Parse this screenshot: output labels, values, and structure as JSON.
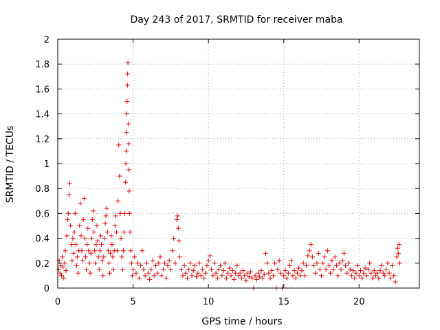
{
  "chart_data": {
    "type": "scatter",
    "title": "Day 243 of 2017, SRMTID for receiver maba",
    "xlabel": "GPS time / hours",
    "ylabel": "SRMTID / TECUs",
    "xlim": [
      0,
      24
    ],
    "ylim": [
      0,
      2
    ],
    "xticks": [
      0,
      5,
      10,
      15,
      20
    ],
    "yticks": [
      0,
      0.2,
      0.4,
      0.6,
      0.8,
      1,
      1.2,
      1.4,
      1.6,
      1.8,
      2
    ],
    "ytick_labels": [
      "0",
      "0.2",
      "0.4",
      "0.6",
      "0.8",
      "1",
      "1.2",
      "1.4",
      "1.6",
      "1.8",
      "2"
    ],
    "grid": true,
    "marker": "+",
    "color": "#e00000",
    "series": [
      {
        "name": "SRMTID",
        "points": [
          [
            0.05,
            0.15
          ],
          [
            0.1,
            0.22
          ],
          [
            0.15,
            0.12
          ],
          [
            0.2,
            0.18
          ],
          [
            0.25,
            0.1
          ],
          [
            0.3,
            0.25
          ],
          [
            0.35,
            0.17
          ],
          [
            0.4,
            0.08
          ],
          [
            0.45,
            0.2
          ],
          [
            0.5,
            0.3
          ],
          [
            0.55,
            0.14
          ],
          [
            0.6,
            0.42
          ],
          [
            0.65,
            0.55
          ],
          [
            0.7,
            0.6
          ],
          [
            0.75,
            0.75
          ],
          [
            0.8,
            0.84
          ],
          [
            0.85,
            0.5
          ],
          [
            0.9,
            0.35
          ],
          [
            0.95,
            0.22
          ],
          [
            1.0,
            0.4
          ],
          [
            1.05,
            0.28
          ],
          [
            1.1,
            0.45
          ],
          [
            1.15,
            0.6
          ],
          [
            1.2,
            0.35
          ],
          [
            1.25,
            0.18
          ],
          [
            1.3,
            0.25
          ],
          [
            1.35,
            0.12
          ],
          [
            1.4,
            0.3
          ],
          [
            1.45,
            0.5
          ],
          [
            1.5,
            0.68
          ],
          [
            1.55,
            0.42
          ],
          [
            1.6,
            0.3
          ],
          [
            1.65,
            0.22
          ],
          [
            1.7,
            0.55
          ],
          [
            1.75,
            0.72
          ],
          [
            1.8,
            0.4
          ],
          [
            1.85,
            0.25
          ],
          [
            1.9,
            0.15
          ],
          [
            1.95,
            0.35
          ],
          [
            2.0,
            0.48
          ],
          [
            2.05,
            0.3
          ],
          [
            2.1,
            0.2
          ],
          [
            2.15,
            0.12
          ],
          [
            2.2,
            0.28
          ],
          [
            2.25,
            0.4
          ],
          [
            2.3,
            0.55
          ],
          [
            2.35,
            0.62
          ],
          [
            2.4,
            0.45
          ],
          [
            2.45,
            0.3
          ],
          [
            2.5,
            0.2
          ],
          [
            2.55,
            0.35
          ],
          [
            2.6,
            0.5
          ],
          [
            2.65,
            0.38
          ],
          [
            2.7,
            0.25
          ],
          [
            2.75,
            0.15
          ],
          [
            2.8,
            0.3
          ],
          [
            2.85,
            0.42
          ],
          [
            2.9,
            0.35
          ],
          [
            2.95,
            0.22
          ],
          [
            3.0,
            0.1
          ],
          [
            3.05,
            0.25
          ],
          [
            3.1,
            0.4
          ],
          [
            3.15,
            0.52
          ],
          [
            3.2,
            0.58
          ],
          [
            3.25,
            0.64
          ],
          [
            3.3,
            0.45
          ],
          [
            3.35,
            0.3
          ],
          [
            3.4,
            0.2
          ],
          [
            3.45,
            0.12
          ],
          [
            3.5,
            0.28
          ],
          [
            3.55,
            0.42
          ],
          [
            3.6,
            0.35
          ],
          [
            3.65,
            0.25
          ],
          [
            3.7,
            0.15
          ],
          [
            3.75,
            0.3
          ],
          [
            3.8,
            0.5
          ],
          [
            3.85,
            0.58
          ],
          [
            3.9,
            0.45
          ],
          [
            3.95,
            0.3
          ],
          [
            4.0,
            0.7
          ],
          [
            4.05,
            1.15
          ],
          [
            4.1,
            0.9
          ],
          [
            4.15,
            0.6
          ],
          [
            4.2,
            0.4
          ],
          [
            4.25,
            0.25
          ],
          [
            4.3,
            0.15
          ],
          [
            4.35,
            0.3
          ],
          [
            4.4,
            0.45
          ],
          [
            4.45,
            0.6
          ],
          [
            4.5,
            0.85
          ],
          [
            4.52,
            1.0
          ],
          [
            4.54,
            1.1
          ],
          [
            4.56,
            1.25
          ],
          [
            4.58,
            1.4
          ],
          [
            4.6,
            1.5
          ],
          [
            4.62,
            1.63
          ],
          [
            4.64,
            1.72
          ],
          [
            4.66,
            1.81
          ],
          [
            4.68,
            1.32
          ],
          [
            4.7,
            1.16
          ],
          [
            4.72,
            0.95
          ],
          [
            4.74,
            0.78
          ],
          [
            4.76,
            0.6
          ],
          [
            4.8,
            0.45
          ],
          [
            4.85,
            0.3
          ],
          [
            4.9,
            0.2
          ],
          [
            4.95,
            0.1
          ],
          [
            5.0,
            0.15
          ],
          [
            5.1,
            0.25
          ],
          [
            5.2,
            0.12
          ],
          [
            5.3,
            0.2
          ],
          [
            5.4,
            0.08
          ],
          [
            5.5,
            0.18
          ],
          [
            5.6,
            0.3
          ],
          [
            5.7,
            0.15
          ],
          [
            5.8,
            0.1
          ],
          [
            5.9,
            0.2
          ],
          [
            6.0,
            0.12
          ],
          [
            6.1,
            0.07
          ],
          [
            6.2,
            0.15
          ],
          [
            6.3,
            0.22
          ],
          [
            6.4,
            0.1
          ],
          [
            6.5,
            0.18
          ],
          [
            6.6,
            0.12
          ],
          [
            6.7,
            0.2
          ],
          [
            6.8,
            0.25
          ],
          [
            6.9,
            0.1
          ],
          [
            7.0,
            0.15
          ],
          [
            7.1,
            0.2
          ],
          [
            7.2,
            0.08
          ],
          [
            7.3,
            0.18
          ],
          [
            7.4,
            0.22
          ],
          [
            7.5,
            0.15
          ],
          [
            7.6,
            0.3
          ],
          [
            7.7,
            0.4
          ],
          [
            7.8,
            0.2
          ],
          [
            7.9,
            0.55
          ],
          [
            7.95,
            0.58
          ],
          [
            8.0,
            0.48
          ],
          [
            8.05,
            0.38
          ],
          [
            8.1,
            0.25
          ],
          [
            8.2,
            0.15
          ],
          [
            8.3,
            0.1
          ],
          [
            8.4,
            0.18
          ],
          [
            8.5,
            0.12
          ],
          [
            8.6,
            0.08
          ],
          [
            8.7,
            0.15
          ],
          [
            8.8,
            0.2
          ],
          [
            8.9,
            0.1
          ],
          [
            9.0,
            0.14
          ],
          [
            9.1,
            0.18
          ],
          [
            9.2,
            0.09
          ],
          [
            9.3,
            0.12
          ],
          [
            9.4,
            0.2
          ],
          [
            9.5,
            0.1
          ],
          [
            9.6,
            0.15
          ],
          [
            9.7,
            0.08
          ],
          [
            9.8,
            0.12
          ],
          [
            9.9,
            0.18
          ],
          [
            10.0,
            0.22
          ],
          [
            10.1,
            0.26
          ],
          [
            10.2,
            0.15
          ],
          [
            10.3,
            0.1
          ],
          [
            10.4,
            0.2
          ],
          [
            10.5,
            0.12
          ],
          [
            10.6,
            0.08
          ],
          [
            10.7,
            0.15
          ],
          [
            10.8,
            0.18
          ],
          [
            10.9,
            0.1
          ],
          [
            11.0,
            0.14
          ],
          [
            11.1,
            0.2
          ],
          [
            11.2,
            0.08
          ],
          [
            11.3,
            0.12
          ],
          [
            11.4,
            0.16
          ],
          [
            11.5,
            0.1
          ],
          [
            11.6,
            0.14
          ],
          [
            11.7,
            0.07
          ],
          [
            11.8,
            0.12
          ],
          [
            11.9,
            0.18
          ],
          [
            12.0,
            0.1
          ],
          [
            12.1,
            0.12
          ],
          [
            12.2,
            0.08
          ],
          [
            12.3,
            0.14
          ],
          [
            12.4,
            0.1
          ],
          [
            12.5,
            0.06
          ],
          [
            12.6,
            0.12
          ],
          [
            12.7,
            0.09
          ],
          [
            12.8,
            0.13
          ],
          [
            12.9,
            0.08
          ],
          [
            13.0,
            0.0
          ],
          [
            13.1,
            0.1
          ],
          [
            13.2,
            0.07
          ],
          [
            13.3,
            0.12
          ],
          [
            13.4,
            0.09
          ],
          [
            13.5,
            0.14
          ],
          [
            13.6,
            0.08
          ],
          [
            13.7,
            0.11
          ],
          [
            13.8,
            0.28
          ],
          [
            13.9,
            0.2
          ],
          [
            14.0,
            0.12
          ],
          [
            14.1,
            0.08
          ],
          [
            14.2,
            0.14
          ],
          [
            14.3,
            0.1
          ],
          [
            14.4,
            0.2
          ],
          [
            14.5,
            0.0
          ],
          [
            14.6,
            0.15
          ],
          [
            14.7,
            0.22
          ],
          [
            14.8,
            0.12
          ],
          [
            14.9,
            0.0
          ],
          [
            15.0,
            0.1
          ],
          [
            15.1,
            0.14
          ],
          [
            15.2,
            0.08
          ],
          [
            15.3,
            0.12
          ],
          [
            15.4,
            0.18
          ],
          [
            15.5,
            0.22
          ],
          [
            15.6,
            0.1
          ],
          [
            15.7,
            0.14
          ],
          [
            15.8,
            0.08
          ],
          [
            15.9,
            0.12
          ],
          [
            16.0,
            0.16
          ],
          [
            16.1,
            0.1
          ],
          [
            16.2,
            0.14
          ],
          [
            16.3,
            0.2
          ],
          [
            16.4,
            0.1
          ],
          [
            16.5,
            0.18
          ],
          [
            16.6,
            0.26
          ],
          [
            16.7,
            0.3
          ],
          [
            16.8,
            0.35
          ],
          [
            16.9,
            0.25
          ],
          [
            17.0,
            0.18
          ],
          [
            17.1,
            0.12
          ],
          [
            17.2,
            0.2
          ],
          [
            17.3,
            0.28
          ],
          [
            17.4,
            0.15
          ],
          [
            17.5,
            0.1
          ],
          [
            17.6,
            0.2
          ],
          [
            17.7,
            0.25
          ],
          [
            17.8,
            0.15
          ],
          [
            17.9,
            0.3
          ],
          [
            18.0,
            0.18
          ],
          [
            18.1,
            0.12
          ],
          [
            18.2,
            0.22
          ],
          [
            18.3,
            0.15
          ],
          [
            18.4,
            0.25
          ],
          [
            18.5,
            0.18
          ],
          [
            18.6,
            0.1
          ],
          [
            18.7,
            0.2
          ],
          [
            18.8,
            0.15
          ],
          [
            18.9,
            0.22
          ],
          [
            19.0,
            0.28
          ],
          [
            19.1,
            0.18
          ],
          [
            19.2,
            0.12
          ],
          [
            19.3,
            0.2
          ],
          [
            19.4,
            0.15
          ],
          [
            19.5,
            0.1
          ],
          [
            19.6,
            0.14
          ],
          [
            19.7,
            0.08
          ],
          [
            19.8,
            0.12
          ],
          [
            19.9,
            0.18
          ],
          [
            20.0,
            0.1
          ],
          [
            20.1,
            0.14
          ],
          [
            20.2,
            0.08
          ],
          [
            20.3,
            0.12
          ],
          [
            20.4,
            0.16
          ],
          [
            20.5,
            0.1
          ],
          [
            20.6,
            0.15
          ],
          [
            20.7,
            0.2
          ],
          [
            20.8,
            0.12
          ],
          [
            20.9,
            0.08
          ],
          [
            21.0,
            0.14
          ],
          [
            21.1,
            0.1
          ],
          [
            21.2,
            0.12
          ],
          [
            21.3,
            0.08
          ],
          [
            21.4,
            0.14
          ],
          [
            21.5,
            0.18
          ],
          [
            21.6,
            0.12
          ],
          [
            21.7,
            0.1
          ],
          [
            21.8,
            0.15
          ],
          [
            21.9,
            0.2
          ],
          [
            22.0,
            0.12
          ],
          [
            22.1,
            0.08
          ],
          [
            22.2,
            0.18
          ],
          [
            22.3,
            0.1
          ],
          [
            22.4,
            0.05
          ],
          [
            22.5,
            0.25
          ],
          [
            22.55,
            0.32
          ],
          [
            22.6,
            0.28
          ],
          [
            22.65,
            0.35
          ],
          [
            22.7,
            0.2
          ]
        ]
      }
    ]
  }
}
